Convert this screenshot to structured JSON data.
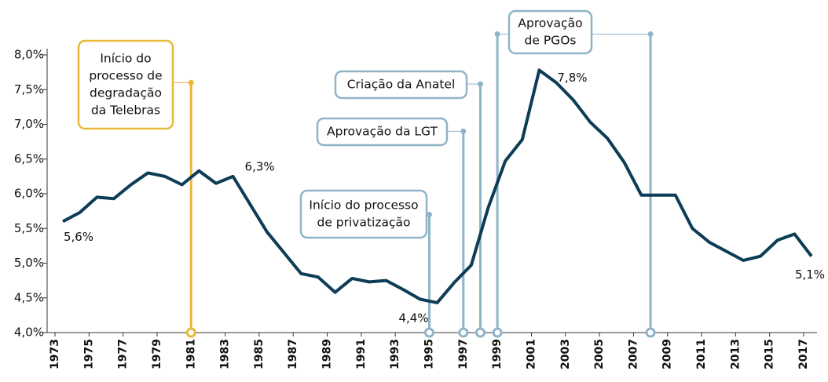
{
  "chart_data": {
    "type": "line",
    "x": [
      1973,
      1974,
      1975,
      1976,
      1977,
      1978,
      1979,
      1980,
      1981,
      1982,
      1983,
      1984,
      1985,
      1986,
      1987,
      1988,
      1989,
      1990,
      1991,
      1992,
      1993,
      1994,
      1995,
      1996,
      1997,
      1998,
      1999,
      2000,
      2001,
      2002,
      2003,
      2004,
      2005,
      2006,
      2007,
      2008,
      2009,
      2010,
      2011,
      2012,
      2013,
      2014,
      2015,
      2016,
      2017
    ],
    "series": [
      {
        "color": "#0d3d56",
        "values": [
          5.6,
          5.73,
          5.95,
          5.93,
          6.13,
          6.3,
          6.25,
          6.13,
          6.33,
          6.15,
          6.25,
          5.85,
          5.45,
          5.15,
          4.85,
          4.8,
          4.58,
          4.78,
          4.73,
          4.75,
          4.62,
          4.48,
          4.43,
          4.72,
          4.97,
          5.8,
          6.47,
          6.78,
          7.78,
          7.6,
          7.35,
          7.03,
          6.8,
          6.45,
          5.98,
          5.98,
          5.98,
          5.5,
          5.3,
          5.17,
          5.04,
          5.1,
          5.33,
          5.42,
          5.1
        ],
        "value_labels": [
          "5,6%",
          null,
          null,
          null,
          null,
          null,
          null,
          null,
          null,
          null,
          "6,3%",
          null,
          null,
          null,
          null,
          null,
          null,
          null,
          null,
          null,
          null,
          null,
          "4,4%",
          null,
          null,
          null,
          null,
          null,
          "7,8%",
          null,
          null,
          null,
          null,
          null,
          null,
          null,
          null,
          null,
          null,
          null,
          null,
          null,
          null,
          null,
          "5,1%"
        ]
      }
    ],
    "xlim": [
      1973,
      2017
    ],
    "xticks": [
      1973,
      1975,
      1977,
      1979,
      1981,
      1983,
      1985,
      1987,
      1989,
      1991,
      1993,
      1995,
      1997,
      1999,
      2001,
      2003,
      2005,
      2007,
      2009,
      2011,
      2013,
      2015,
      2017
    ],
    "ylim": [
      4.0,
      8.0
    ],
    "yticks": [
      {
        "value": 4.0,
        "label": "4,0%"
      },
      {
        "value": 4.5,
        "label": "4,5%"
      },
      {
        "value": 5.0,
        "label": "5,0%"
      },
      {
        "value": 5.5,
        "label": "5,5%"
      },
      {
        "value": 6.0,
        "label": "6,0%"
      },
      {
        "value": 6.5,
        "label": "6,5%"
      },
      {
        "value": 7.0,
        "label": "7,0%"
      },
      {
        "value": 7.5,
        "label": "7,5%"
      },
      {
        "value": 8.0,
        "label": "8,0%"
      }
    ],
    "annotations": [
      {
        "text": [
          "Início do",
          "processo de",
          "degradação",
          "da Telebras"
        ],
        "x": [
          1981
        ],
        "y": 7.6,
        "color": "#e8b83a"
      },
      {
        "text": [
          "Início do processo",
          "de privatização"
        ],
        "x": [
          1995
        ],
        "y": 5.7,
        "color": "#8fb4c8"
      },
      {
        "text": [
          "Aprovação da LGT"
        ],
        "x": [
          1997
        ],
        "y": 6.9,
        "color": "#8fb4c8"
      },
      {
        "text": [
          "Criação da Anatel"
        ],
        "x": [
          1998
        ],
        "y": 7.58,
        "color": "#8fb4c8"
      },
      {
        "text": [
          "Aprovação",
          "de PGOs"
        ],
        "x": [
          1999,
          2008
        ],
        "y": 8.3,
        "color": "#8fb4c8"
      }
    ]
  }
}
